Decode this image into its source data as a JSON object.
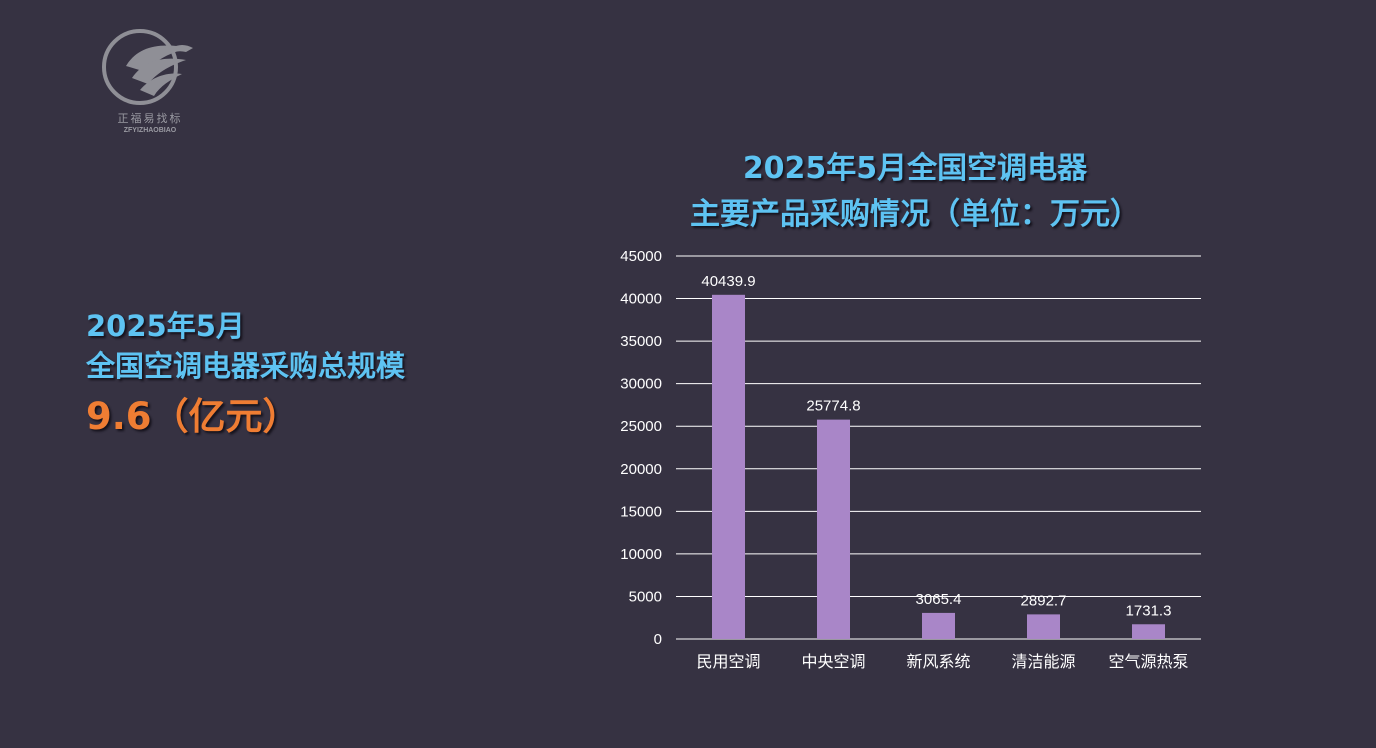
{
  "logo": {
    "name_cn": "正福易找标",
    "name_en": "ZFYIZHAOBIAO",
    "icon": "eagle-logo-icon"
  },
  "summary": {
    "line1": "2025年5月",
    "line2": "全国空调电器采购总规模",
    "value": "9.6（亿元）"
  },
  "colors": {
    "background": "#363242",
    "accent_blue": "#5ec3f2",
    "accent_orange": "#ef7d33",
    "bar": "#a986c8",
    "grid": "#ffffff"
  },
  "chart_data": {
    "type": "bar",
    "title_line1": "2025年5月全国空调电器",
    "title_line2": "主要产品采购情况（单位：万元）",
    "categories": [
      "民用空调",
      "中央空调",
      "新风系统",
      "清洁能源",
      "空气源热泵"
    ],
    "values": [
      40439.9,
      25774.8,
      3065.4,
      2892.7,
      1731.3
    ],
    "value_labels": [
      "40439.9",
      "25774.8",
      "3065.4",
      "2892.7",
      "1731.3"
    ],
    "y_ticks": [
      0,
      5000,
      10000,
      15000,
      20000,
      25000,
      30000,
      35000,
      40000,
      45000
    ],
    "ylim": [
      0,
      45000
    ],
    "grid": true,
    "legend": "none"
  }
}
